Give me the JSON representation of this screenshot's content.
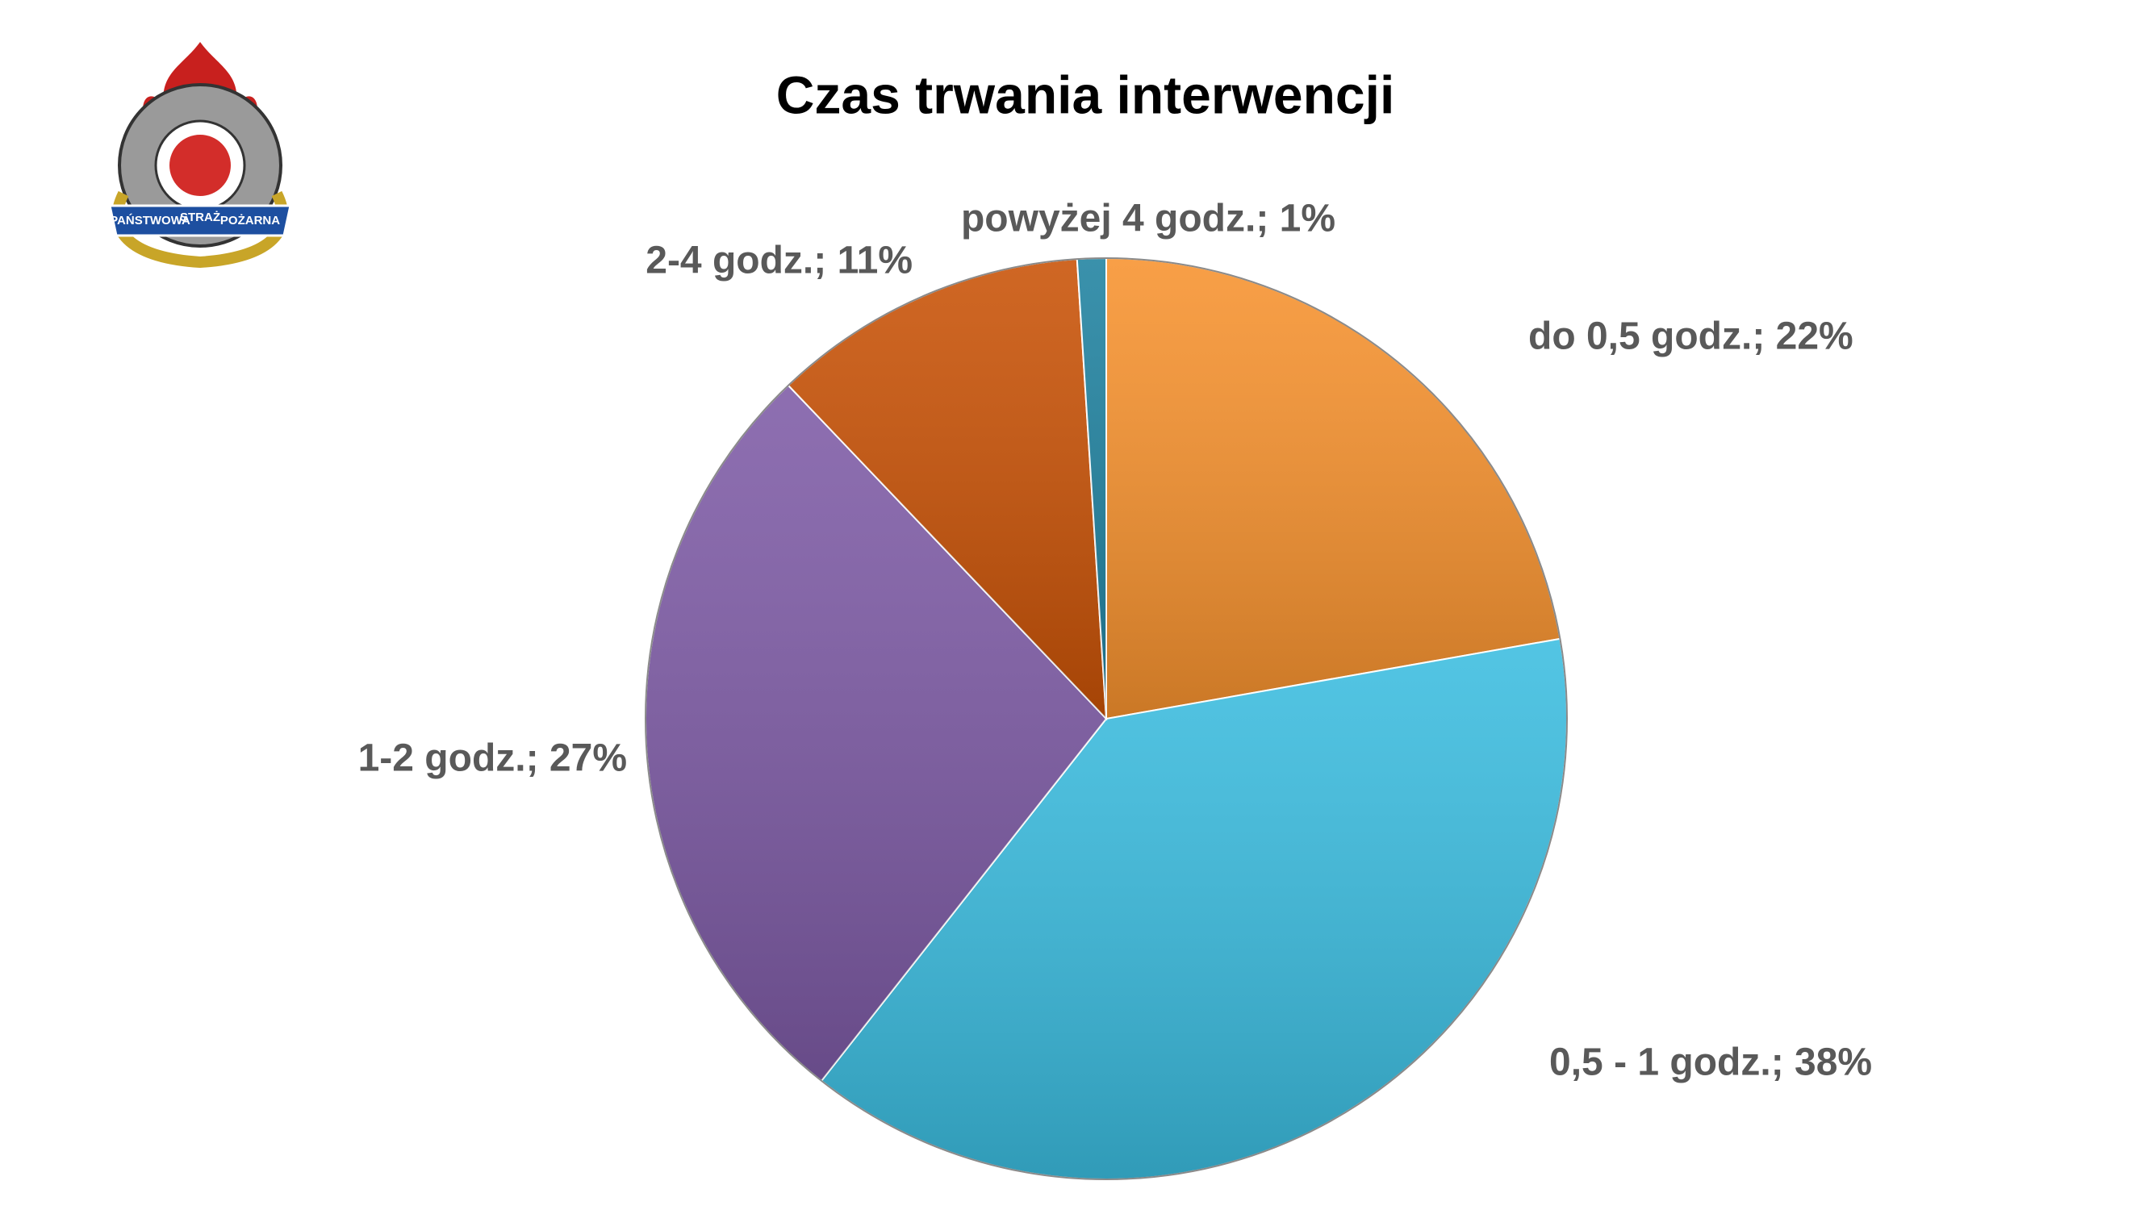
{
  "logo": {
    "text": [
      "PAŃSTWOWA",
      "STRAŻ",
      "POŻARNA"
    ]
  },
  "chart_data": {
    "type": "pie",
    "title": "Czas trwania interwencji",
    "values": [
      22,
      38,
      27,
      11,
      1
    ],
    "value_labels": [
      "do 0,5 godz.; 22%",
      "0,5 - 1 godz.; 38%",
      "1-2 godz.; 27%",
      "2-4 godz.; 11%",
      "powyżej 4 godz.; 1%"
    ],
    "colors": [
      "#f7922e",
      "#3bbde0",
      "#7e5ba6",
      "#c95206",
      "#1f82a0"
    ]
  }
}
